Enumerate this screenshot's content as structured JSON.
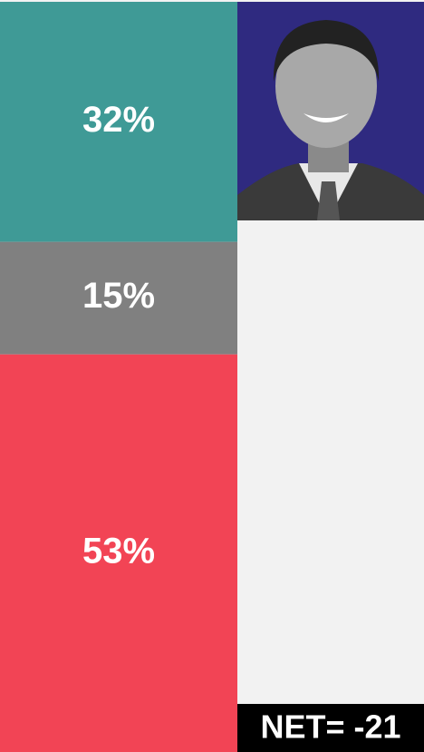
{
  "chart_data": {
    "type": "stacked-bar",
    "values": [
      32,
      15,
      53
    ],
    "value_labels": [
      "32%",
      "15%",
      "53%"
    ],
    "colors": [
      "#3f9a96",
      "#808080",
      "#f24455"
    ],
    "ylim": [
      0,
      100
    ],
    "annotation": "NET= -21"
  }
}
